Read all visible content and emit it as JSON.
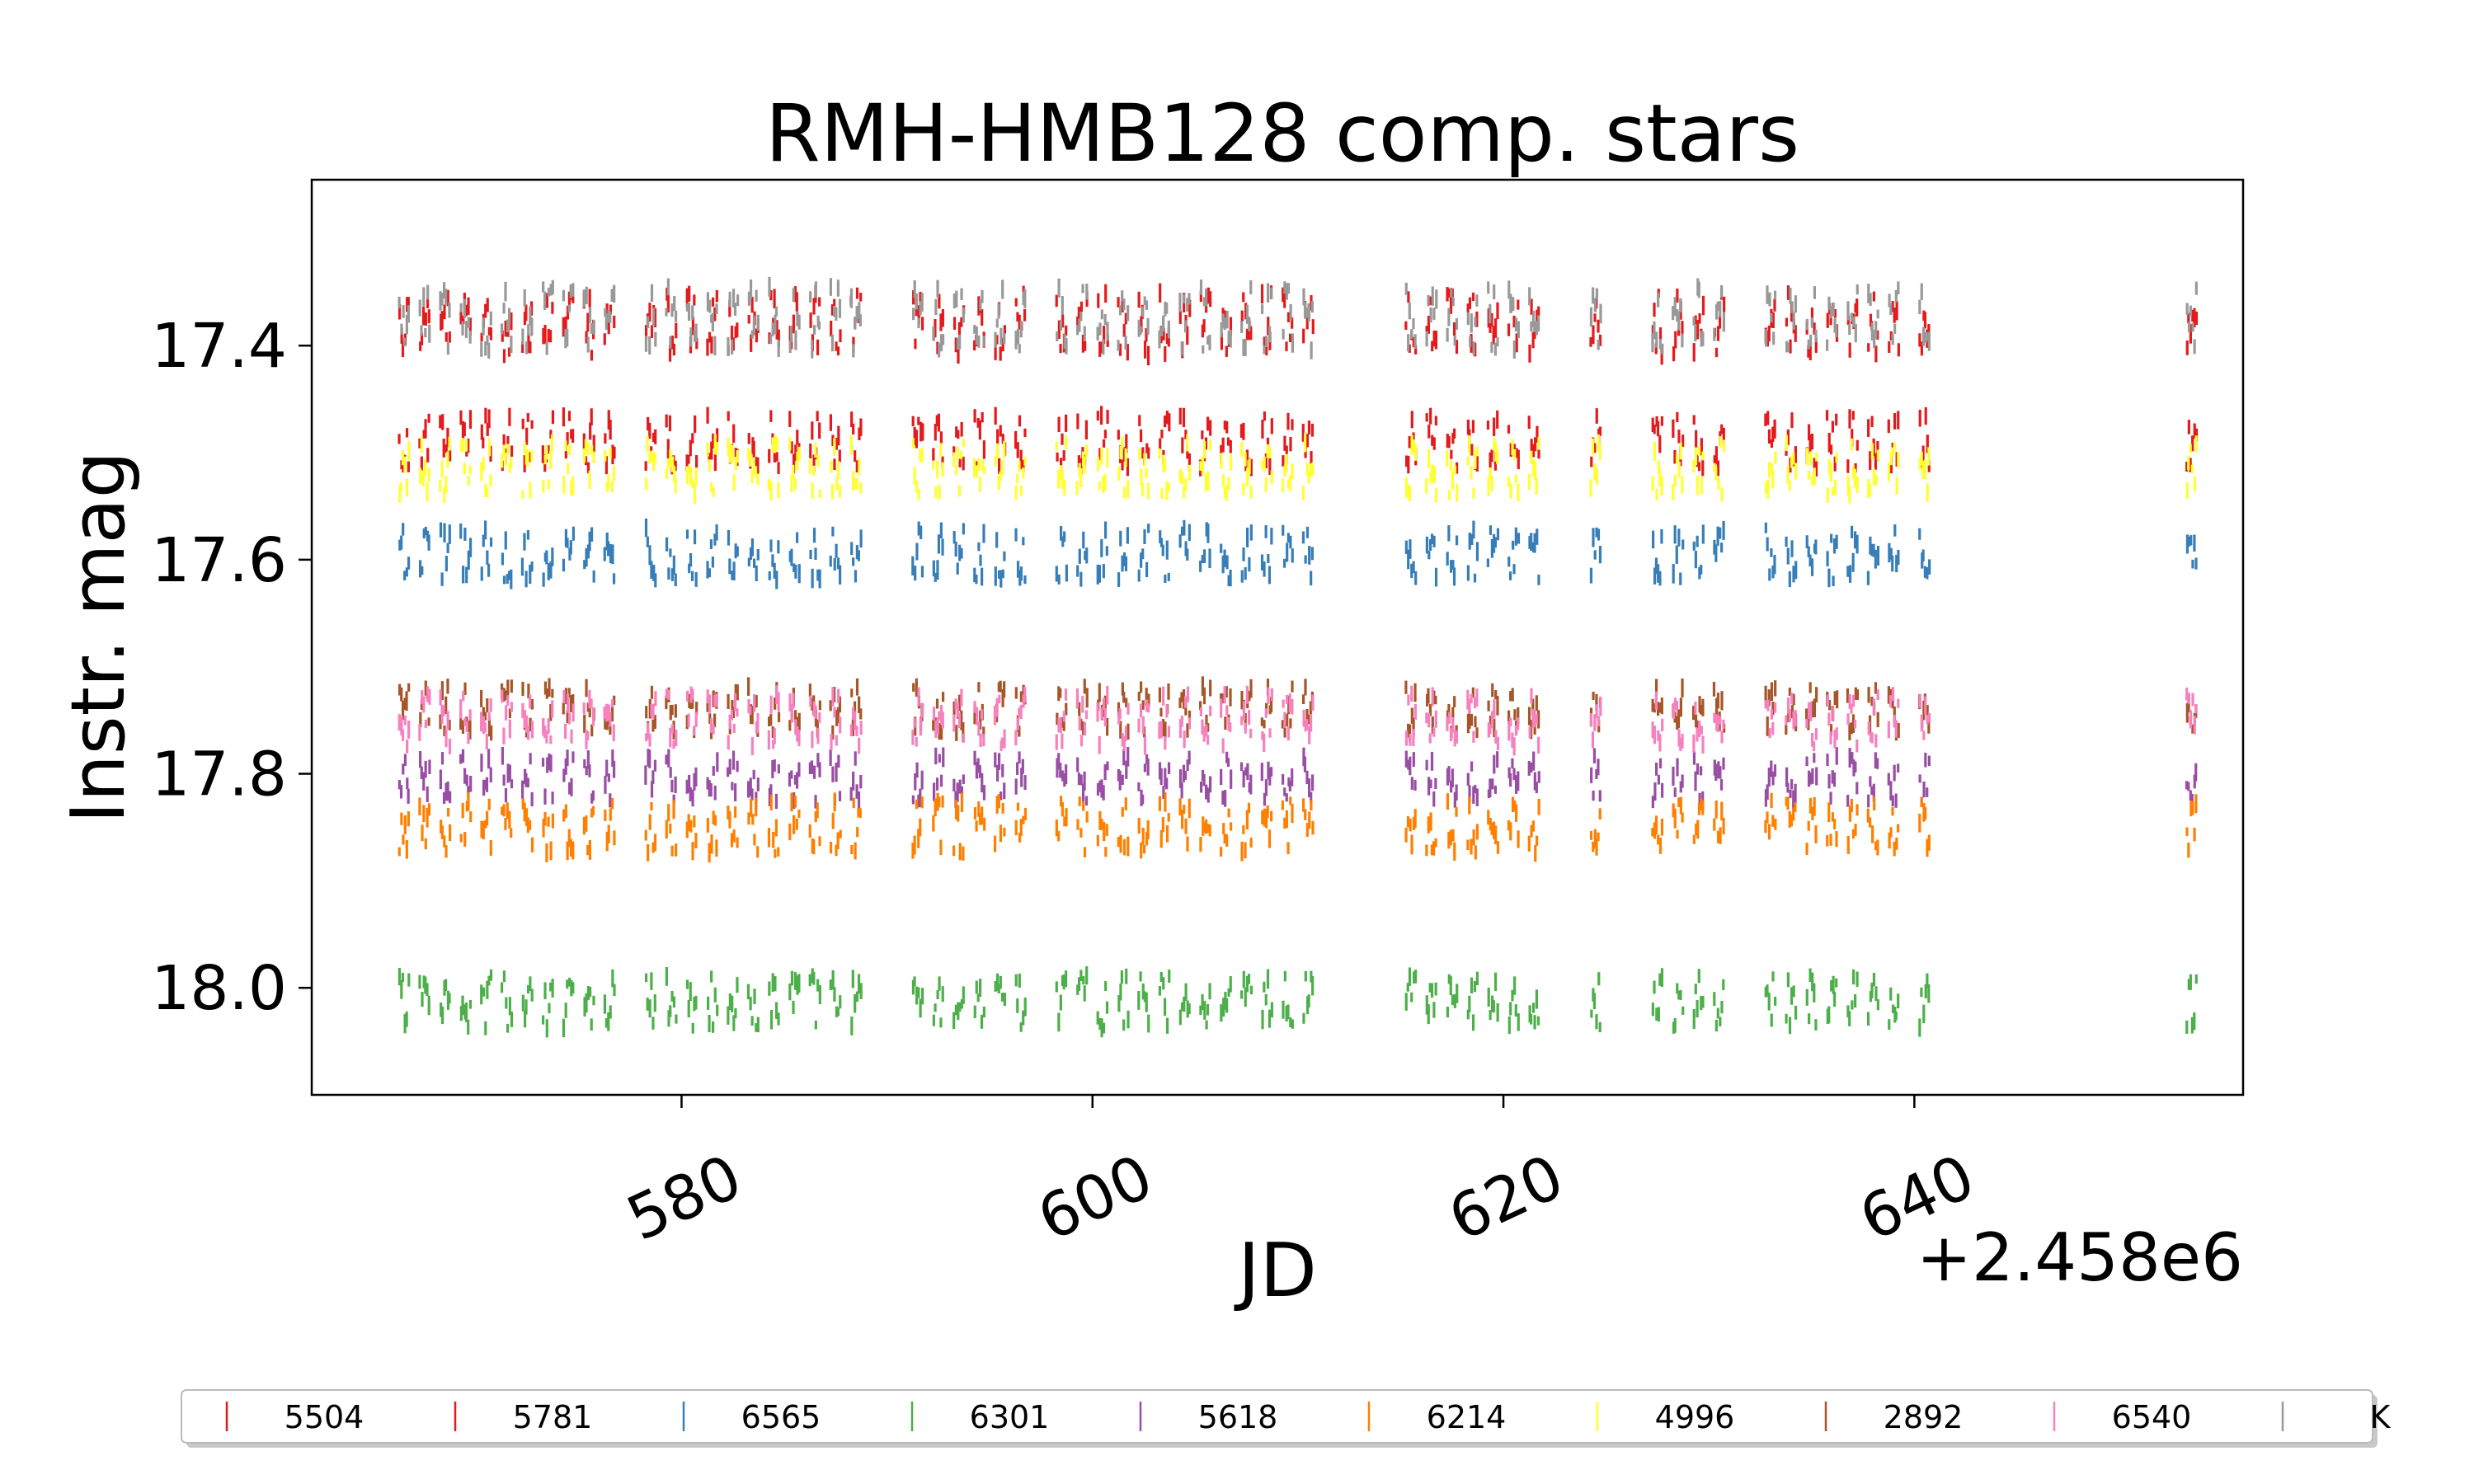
{
  "chart_data": {
    "type": "scatter",
    "marker": "vertical-dash",
    "title": "RMH-HMB128 comp. stars",
    "xlabel": "JD",
    "ylabel": "Instr. mag",
    "x_offset_label": "+2.458e6",
    "x_offset": 2458000,
    "xlim": [
      562,
      656
    ],
    "ylim": [
      18.1,
      17.245
    ],
    "y_inverted": true,
    "xticks": [
      580,
      600,
      620,
      640
    ],
    "xtick_labels": [
      "580",
      "600",
      "620",
      "640"
    ],
    "yticks": [
      17.4,
      17.6,
      17.8,
      18.0
    ],
    "ytick_labels": [
      "17.4",
      "17.6",
      "17.8",
      "18.0"
    ],
    "grid": false,
    "legend_position": "bottom",
    "observation_nights": [
      566.5,
      567.5,
      568.5,
      569.5,
      570.5,
      571.5,
      572.5,
      573.5,
      574.5,
      575.5,
      576.5,
      578.5,
      579.5,
      580.5,
      581.5,
      582.5,
      583.5,
      584.5,
      585.5,
      586.5,
      587.5,
      588.5,
      591.5,
      592.5,
      593.5,
      594.5,
      595.5,
      596.5,
      598.5,
      599.5,
      600.5,
      601.5,
      602.5,
      603.5,
      604.5,
      605.5,
      606.5,
      607.5,
      608.5,
      609.5,
      610.5,
      615.5,
      616.5,
      617.5,
      618.5,
      619.5,
      620.5,
      621.5,
      624.5,
      627.5,
      628.5,
      629.5,
      630.5,
      633.0,
      634.0,
      635.0,
      636.0,
      637.0,
      638.0,
      639.0,
      640.5,
      653.5
    ],
    "series": [
      {
        "name": "5504",
        "color": "#e41a1c",
        "mean_mag": 17.38,
        "spread": 0.03
      },
      {
        "name": "5781",
        "color": "#e41a1c",
        "mean_mag": 17.49,
        "spread": 0.025
      },
      {
        "name": "6565",
        "color": "#377eb8",
        "mean_mag": 17.595,
        "spread": 0.025
      },
      {
        "name": "6301",
        "color": "#4daf4a",
        "mean_mag": 18.013,
        "spread": 0.025
      },
      {
        "name": "5618",
        "color": "#984ea3",
        "mean_mag": 17.805,
        "spread": 0.022
      },
      {
        "name": "6214",
        "color": "#ff7f00",
        "mean_mag": 17.85,
        "spread": 0.025
      },
      {
        "name": "4996",
        "color": "#ffff33",
        "mean_mag": 17.515,
        "spread": 0.025
      },
      {
        "name": "2892",
        "color": "#a65628",
        "mean_mag": 17.74,
        "spread": 0.022
      },
      {
        "name": "6540",
        "color": "#f781bf",
        "mean_mag": 17.75,
        "spread": 0.025
      },
      {
        "name": "K",
        "color": "#999999",
        "mean_mag": 17.375,
        "spread": 0.03
      }
    ]
  }
}
